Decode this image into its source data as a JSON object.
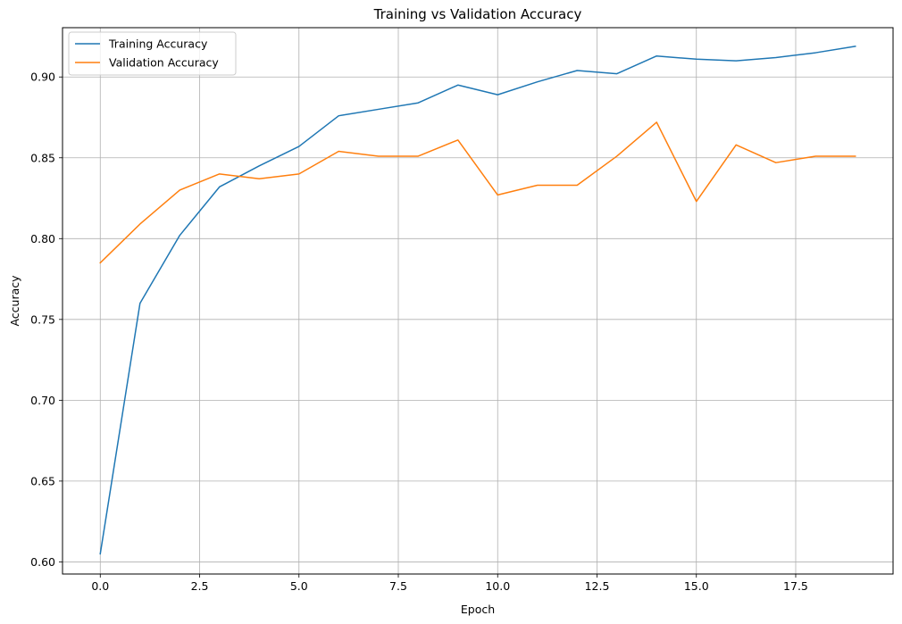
{
  "chart_data": {
    "type": "line",
    "title": "Training vs Validation Accuracy",
    "xlabel": "Epoch",
    "ylabel": "Accuracy",
    "x": [
      0,
      1,
      2,
      3,
      4,
      5,
      6,
      7,
      8,
      9,
      10,
      11,
      12,
      13,
      14,
      15,
      16,
      17,
      18,
      19
    ],
    "xlim": [
      -0.95,
      19.95
    ],
    "ylim": [
      0.5925,
      0.9305
    ],
    "xticks": [
      0.0,
      2.5,
      5.0,
      7.5,
      10.0,
      12.5,
      15.0,
      17.5
    ],
    "xtick_labels": [
      "0.0",
      "2.5",
      "5.0",
      "7.5",
      "10.0",
      "12.5",
      "15.0",
      "17.5"
    ],
    "yticks": [
      0.6,
      0.65,
      0.7,
      0.75,
      0.8,
      0.85,
      0.9
    ],
    "ytick_labels": [
      "0.60",
      "0.65",
      "0.70",
      "0.75",
      "0.80",
      "0.85",
      "0.90"
    ],
    "grid": true,
    "legend_position": "top-left",
    "series": [
      {
        "name": "Training Accuracy",
        "color": "#1f77b4",
        "values": [
          0.605,
          0.76,
          0.802,
          0.832,
          0.845,
          0.857,
          0.876,
          0.88,
          0.884,
          0.895,
          0.889,
          0.897,
          0.904,
          0.902,
          0.913,
          0.911,
          0.91,
          0.912,
          0.915,
          0.919
        ]
      },
      {
        "name": "Validation Accuracy",
        "color": "#ff7f0e",
        "values": [
          0.785,
          0.809,
          0.83,
          0.84,
          0.837,
          0.84,
          0.854,
          0.851,
          0.851,
          0.861,
          0.827,
          0.833,
          0.833,
          0.851,
          0.872,
          0.823,
          0.858,
          0.847,
          0.851,
          0.851
        ]
      }
    ]
  }
}
